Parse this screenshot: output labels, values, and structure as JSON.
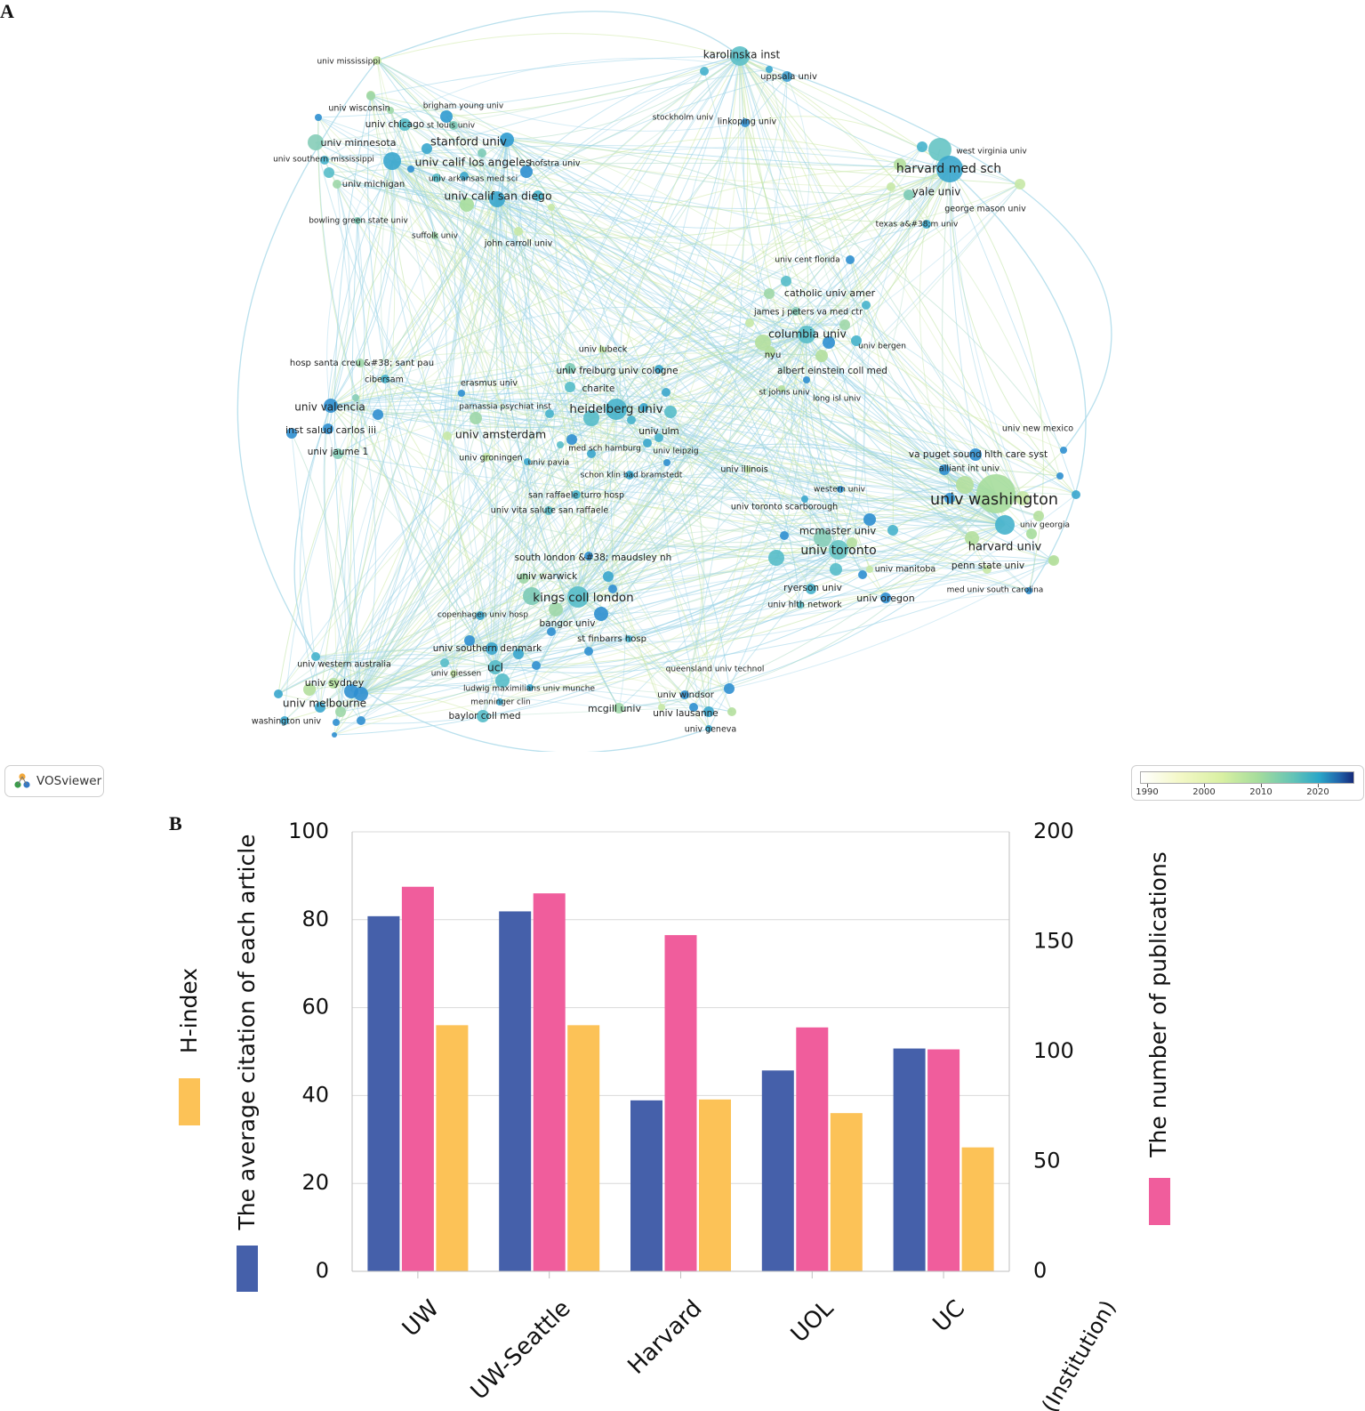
{
  "panels": {
    "a": "A",
    "b": "B"
  },
  "network": {
    "logo_text": "VOSviewer",
    "legend": {
      "ticks": [
        "1990",
        "2000",
        "2010",
        "2020"
      ]
    },
    "node_labels": {
      "n01": "univ mississippi",
      "n02": "karolinska inst",
      "n03": "uppsala univ",
      "n04": "brigham young univ",
      "n05": "univ wisconsin",
      "n06": "univ chicago",
      "n07": "st louis univ",
      "n08": "stockholm univ",
      "n09": "linkoping univ",
      "n10": "univ minnesota",
      "n11": "stanford univ",
      "n12": "west virginia univ",
      "n13": "univ southern mississippi",
      "n14": "univ calif los angeles",
      "n15": "hofstra univ",
      "n16": "harvard med sch",
      "n17": "univ arkansas med sci",
      "n18": "univ michigan",
      "n19": "yale univ",
      "n20": "univ calif san diego",
      "n21": "george mason univ",
      "n22": "bowling green state univ",
      "n23": "texas a&#38;m univ",
      "n24": "suffolk univ",
      "n25": "john carroll univ",
      "n26": "univ cent florida",
      "n27": "catholic univ amer",
      "n28": "james j peters va med ctr",
      "n29": "columbia univ",
      "n30": "univ lubeck",
      "n31": "univ bergen",
      "n32": "nyu",
      "n33": "hosp santa creu &#38; sant pau",
      "n34": "univ freiburg",
      "n35": "univ cologne",
      "n36": "albert einstein coll med",
      "n37": "cibersam",
      "n38": "erasmus univ",
      "n39": "charite",
      "n40": "st johns univ",
      "n41": "long isl univ",
      "n42": "univ valencia",
      "n43": "parnassia psychiat inst",
      "n44": "heidelberg univ",
      "n45": "univ new mexico",
      "n46": "inst salud carlos iii",
      "n47": "univ amsterdam",
      "n48": "univ ulm",
      "n49": "med sch hamburg",
      "n50": "univ leipzig",
      "n51": "va puget sound hlth care syst",
      "n52": "univ jaume 1",
      "n53": "univ groningen",
      "n54": "univ pavia",
      "n55": "alliant int univ",
      "n56": "univ illinois",
      "n57": "schon klin bad bramstedt",
      "n58": "western univ",
      "n59": "san raffaele turro hosp",
      "n60": "univ washington",
      "n61": "univ vita salute san raffaele",
      "n62": "univ toronto scarborough",
      "n63": "univ georgia",
      "n64": "mcmaster univ",
      "n65": "harvard univ",
      "n66": "south london &#38; maudsley nh",
      "n67": "univ toronto",
      "n68": "penn state univ",
      "n69": "univ manitoba",
      "n70": "univ warwick",
      "n71": "ryerson univ",
      "n72": "med univ south carolina",
      "n73": "kings coll london",
      "n74": "univ oregon",
      "n75": "univ hlth network",
      "n76": "copenhagen univ hosp",
      "n77": "bangor univ",
      "n78": "st finbarrs hosp",
      "n79": "univ southern denmark",
      "n80": "univ western australia",
      "n81": "ucl",
      "n82": "queensland univ technol",
      "n83": "univ giessen",
      "n84": "univ sydney",
      "n85": "ludwig maximilians univ munche",
      "n86": "univ windsor",
      "n87": "menninger clin",
      "n88": "univ melbourne",
      "n89": "mcgill univ",
      "n90": "univ lausanne",
      "n91": "baylor coll med",
      "n92": "washington univ",
      "n93": "univ geneva"
    }
  },
  "chart_data": {
    "type": "bar",
    "categories": [
      "UW",
      "UW-Seattle",
      "Harvard",
      "UOL",
      "UC"
    ],
    "x_axis_title": "(Institution)",
    "left_axis": {
      "ylim": [
        0,
        100
      ],
      "ticks": [
        "0",
        "20",
        "40",
        "60",
        "80",
        "100"
      ]
    },
    "right_axis": {
      "ylim": [
        0,
        200
      ],
      "ticks": [
        "0",
        "50",
        "100",
        "150",
        "200"
      ]
    },
    "series": [
      {
        "name": "The average citation of each article",
        "axis": "left",
        "color": "#4560aa",
        "values": [
          80.8,
          81.9,
          38.9,
          45.7,
          50.7
        ]
      },
      {
        "name": "The number of publications",
        "axis": "right",
        "color": "#f05d9c",
        "values": [
          175,
          172,
          153,
          111,
          101
        ]
      },
      {
        "name": "H-index",
        "axis": "left",
        "color": "#fcc257",
        "values": [
          56,
          56,
          39.1,
          36,
          28.2
        ]
      }
    ]
  }
}
